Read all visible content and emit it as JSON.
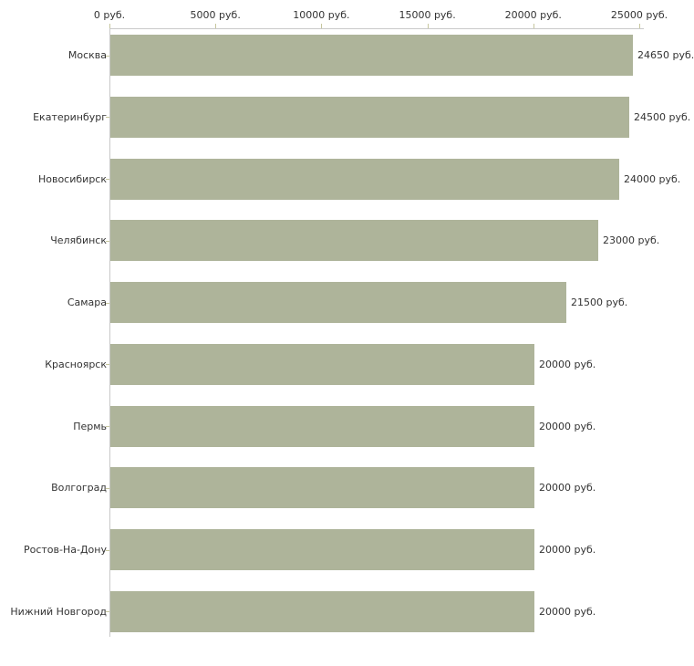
{
  "chart_data": {
    "type": "bar",
    "orientation": "horizontal",
    "title": "",
    "xlabel": "",
    "ylabel": "",
    "xlim": [
      0,
      25000
    ],
    "grid": false,
    "legend": false,
    "x_axis_position": "top",
    "x_ticks": [
      "0 руб.",
      "5000 руб.",
      "10000 руб.",
      "15000 руб.",
      "20000 руб.",
      "25000 руб."
    ],
    "x_tick_values": [
      0,
      5000,
      10000,
      15000,
      20000,
      25000
    ],
    "categories": [
      "Москва",
      "Екатеринбург",
      "Новосибирск",
      "Челябинск",
      "Самара",
      "Красноярск",
      "Пермь",
      "Волгоград",
      "Ростов-На-Дону",
      "Нижний Новгород"
    ],
    "values": [
      24650,
      24500,
      24000,
      23000,
      21500,
      20000,
      20000,
      20000,
      20000,
      20000
    ],
    "value_labels": [
      "24650 руб.",
      "24500 руб.",
      "24000 руб.",
      "23000 руб.",
      "21500 руб.",
      "20000 руб.",
      "20000 руб.",
      "20000 руб.",
      "20000 руб.",
      "20000 руб."
    ],
    "colors": {
      "bar_fill": "#aeb49a",
      "axis_line": "#c9c9c9",
      "tick_mark": "#c6c69e",
      "text": "#333333",
      "background": "#ffffff"
    }
  }
}
